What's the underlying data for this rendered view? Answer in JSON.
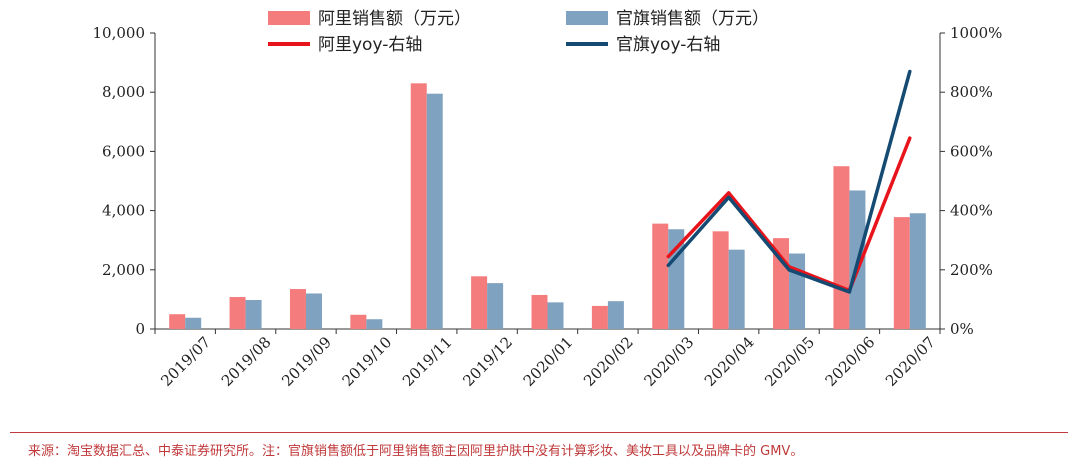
{
  "chart_data": {
    "type": "bar",
    "categories": [
      "2019/07",
      "2019/08",
      "2019/09",
      "2019/10",
      "2019/11",
      "2019/12",
      "2020/01",
      "2020/02",
      "2020/03",
      "2020/04",
      "2020/05",
      "2020/06",
      "2020/07"
    ],
    "series": [
      {
        "name": "阿里销售额（万元）",
        "type": "bar",
        "axis": "left",
        "color": "#f47c7c",
        "values": [
          500,
          1080,
          1350,
          480,
          8300,
          1780,
          1150,
          780,
          3560,
          3300,
          3070,
          5500,
          3780
        ]
      },
      {
        "name": "官旗销售额（万元）",
        "type": "bar",
        "axis": "left",
        "color": "#7fa2c0",
        "values": [
          380,
          980,
          1200,
          330,
          7950,
          1550,
          900,
          940,
          3370,
          2680,
          2550,
          4680,
          3910
        ]
      },
      {
        "name": "阿里yoy-右轴",
        "type": "line",
        "axis": "right",
        "color": "#e8141b",
        "start_index": 8,
        "values": [
          null,
          null,
          null,
          null,
          null,
          null,
          null,
          null,
          2.45,
          4.6,
          2.1,
          1.3,
          6.45
        ]
      },
      {
        "name": "官旗yoy-右轴",
        "type": "line",
        "axis": "right",
        "color": "#154a73",
        "start_index": 8,
        "values": [
          null,
          null,
          null,
          null,
          null,
          null,
          null,
          null,
          2.15,
          4.45,
          2.0,
          1.25,
          8.7
        ]
      }
    ],
    "y_left": {
      "min": 0,
      "max": 10000,
      "ticks": [
        "0",
        "2,000",
        "4,000",
        "6,000",
        "8,000",
        "10,000"
      ],
      "tick_values": [
        0,
        2000,
        4000,
        6000,
        8000,
        10000
      ]
    },
    "y_right": {
      "min": 0,
      "max": 10,
      "ticks": [
        "0%",
        "200%",
        "400%",
        "600%",
        "800%",
        "1000%"
      ],
      "tick_values": [
        0,
        2,
        4,
        6,
        8,
        10
      ]
    },
    "legend_position": "top",
    "grid": false
  },
  "source_note": "来源：淘宝数据汇总、中泰证券研究所。注：官旗销售额低于阿里销售额主因阿里护肤中没有计算彩妆、美妆工具以及品牌卡的 GMV。"
}
